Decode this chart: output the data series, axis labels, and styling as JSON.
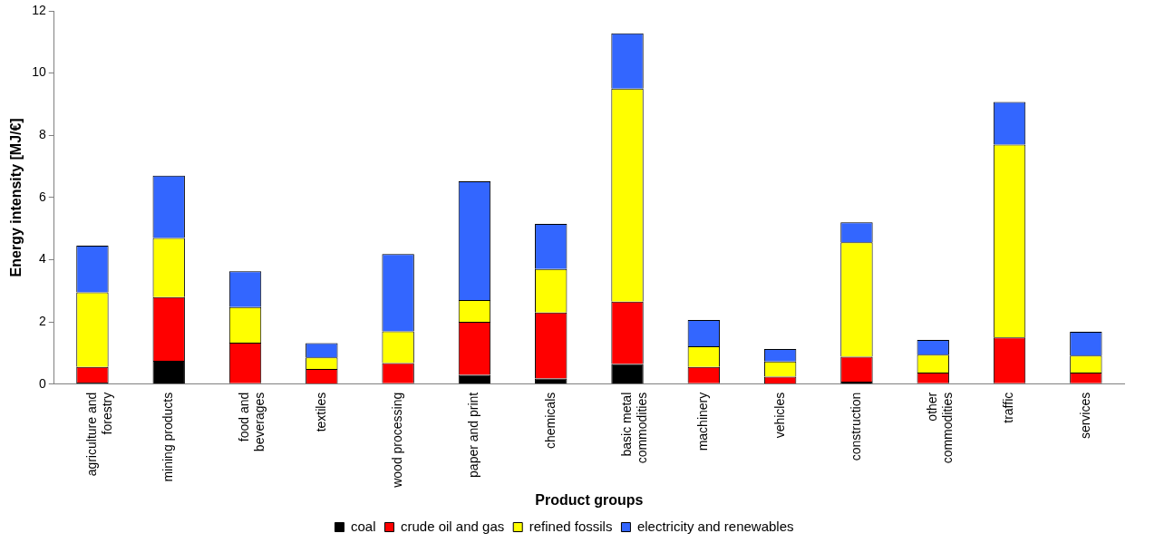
{
  "chart_data": {
    "type": "bar",
    "stacked": true,
    "xlabel": "Product groups",
    "ylabel": "Energy intensity [MJ/€]",
    "categories": [
      "agriculture and forestry",
      "mining products",
      "food and beverages",
      "textiles",
      "wood processing",
      "paper and print",
      "chemicals",
      "basic metal commodities",
      "machinery",
      "vehicles",
      "construction",
      "other commodities",
      "traffic",
      "services"
    ],
    "series": [
      {
        "name": "coal",
        "color": "#000000",
        "values": [
          0.05,
          0.75,
          0.03,
          0.02,
          0.03,
          0.3,
          0.18,
          0.65,
          0.03,
          0.02,
          0.08,
          0.03,
          0.03,
          0.03
        ]
      },
      {
        "name": "crude oil and gas",
        "color": "#ff0000",
        "values": [
          0.5,
          2.05,
          1.3,
          0.47,
          0.65,
          1.7,
          2.12,
          2.0,
          0.52,
          0.22,
          0.8,
          0.34,
          1.47,
          0.34
        ]
      },
      {
        "name": "refined fossils",
        "color": "#ffff00",
        "values": [
          2.4,
          1.9,
          1.15,
          0.37,
          1.02,
          0.7,
          1.4,
          6.85,
          0.67,
          0.49,
          3.68,
          0.58,
          6.2,
          0.55
        ]
      },
      {
        "name": "electricity and renewables",
        "color": "#3366ff",
        "values": [
          1.5,
          2.0,
          1.15,
          0.46,
          2.48,
          3.82,
          1.45,
          1.78,
          0.84,
          0.4,
          0.64,
          0.47,
          1.37,
          0.76
        ]
      }
    ],
    "ylim": [
      0,
      12
    ],
    "yticks": [
      0,
      2,
      4,
      6,
      8,
      10,
      12
    ],
    "grid": false,
    "legend": "bottom"
  }
}
